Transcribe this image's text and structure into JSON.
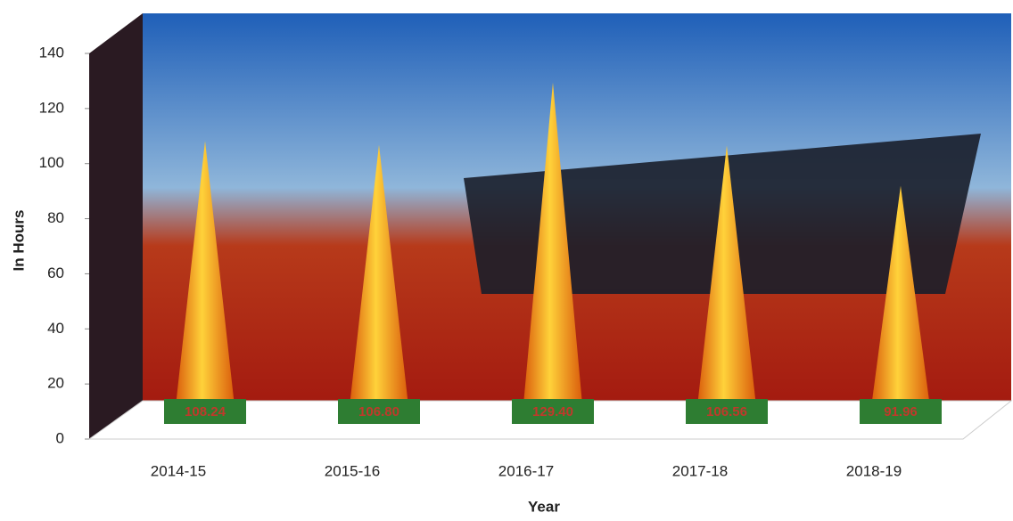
{
  "chart_data": {
    "type": "cone",
    "title_y": "In Hours",
    "title_x": "Year",
    "categories": [
      "2014-15",
      "2015-16",
      "2016-17",
      "2017-18",
      "2018-19"
    ],
    "values": [
      108.24,
      106.8,
      129.4,
      106.56,
      91.96
    ],
    "value_labels": [
      "108.24",
      "106.80",
      "129.40",
      "106.56",
      "91.96"
    ],
    "color": "#f39c12",
    "ylim": [
      0,
      140
    ],
    "yticks": [
      0,
      20,
      40,
      60,
      80,
      100,
      120,
      140
    ]
  }
}
